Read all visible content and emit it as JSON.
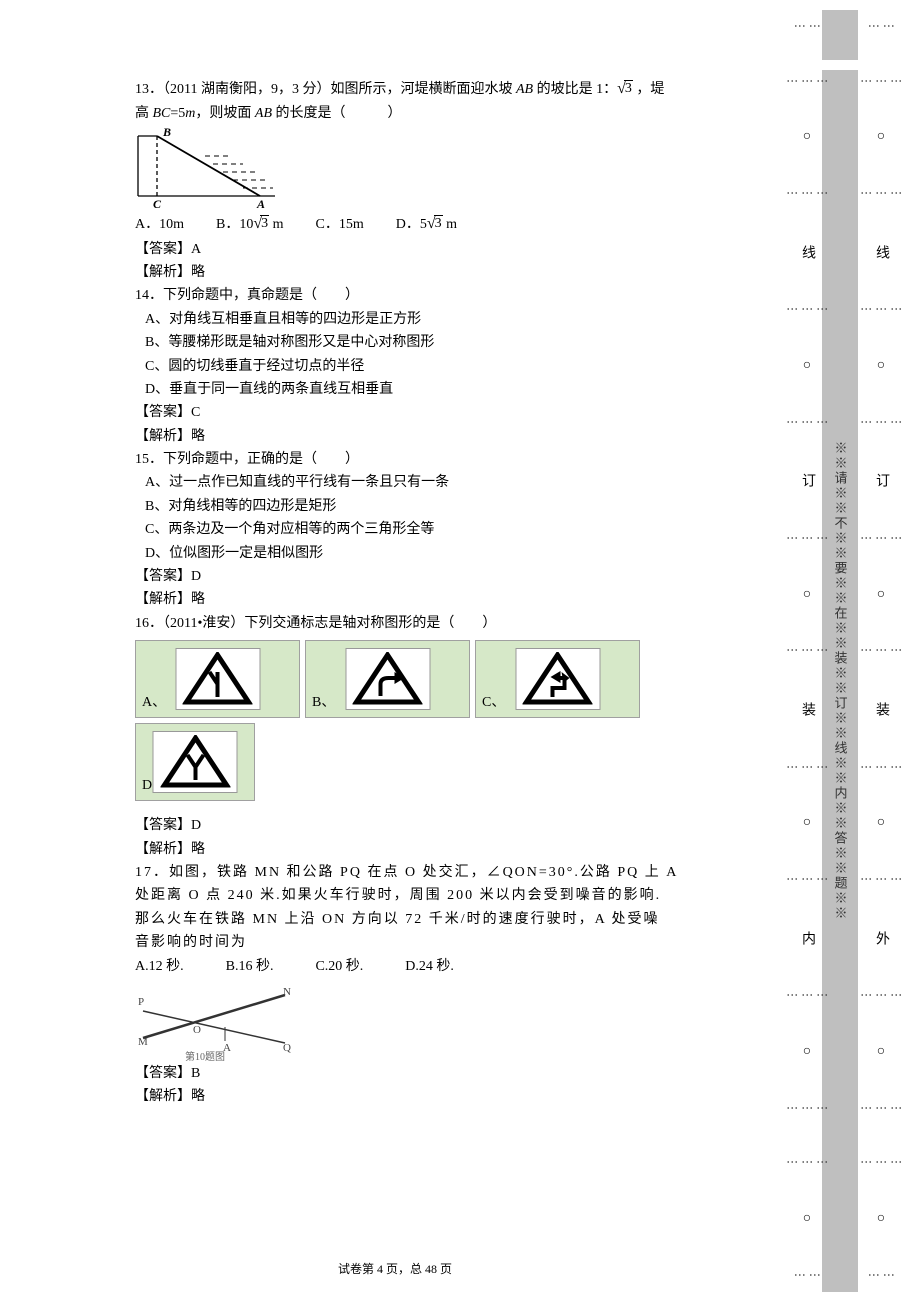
{
  "page": {
    "footer": "试卷第 4 页，总 48 页",
    "binding_left_chars": [
      "线",
      "订",
      "装",
      "内"
    ],
    "binding_right_chars": [
      "线",
      "订",
      "装",
      "外"
    ],
    "binding_middle_text": "※※请※※不※※要※※在※※装※※订※※线※※内※※答※※题※※",
    "dot": "⋮",
    "circle": "○"
  },
  "q13": {
    "text_pre": "13．（2011 湖南衡阳，9，3 分）如图所示，河堤横断面迎水坡 ",
    "text_ab": "AB",
    "text_mid": " 的坡比是 1：",
    "sqrt_3": "3",
    "text_post": " ，堤",
    "line2_pre": "高 ",
    "line2_bc": "BC",
    "line2_eq": "=5",
    "line2_m": "m",
    "line2_mid": "，则坡面 ",
    "line2_ab": "AB",
    "line2_post": " 的长度是（　　　）",
    "opt_a": "A．10m",
    "opt_b_pre": "B．10",
    "opt_b_post": " m",
    "opt_c": "C．15m",
    "opt_d_pre": "D．5",
    "opt_d_post": " m",
    "answer_label": "【答案】",
    "answer": "A",
    "explain_label": "【解析】",
    "explain": "略",
    "diagram_labels": {
      "B": "B",
      "C": "C",
      "A": "A"
    }
  },
  "q14": {
    "stem": "14．下列命题中，真命题是（　　）",
    "a": "A、对角线互相垂直且相等的四边形是正方形",
    "b": "B、等腰梯形既是轴对称图形又是中心对称图形",
    "c": "C、圆的切线垂直于经过切点的半径",
    "d": "D、垂直于同一直线的两条直线互相垂直",
    "answer_label": "【答案】",
    "answer": "C",
    "explain_label": "【解析】",
    "explain": "略"
  },
  "q15": {
    "stem": "15．下列命题中，正确的是（　　）",
    "a": "A、过一点作已知直线的平行线有一条且只有一条",
    "b": "B、对角线相等的四边形是矩形",
    "c": "C、两条边及一个角对应相等的两个三角形全等",
    "d": "D、位似图形一定是相似图形",
    "answer_label": "【答案】",
    "answer": "D",
    "explain_label": "【解析】",
    "explain": "略"
  },
  "q16": {
    "stem": "16．（2011•淮安）下列交通标志是轴对称图形的是（　　）",
    "labels": {
      "a": "A、",
      "b": "B、",
      "c": "C、",
      "d": "D、"
    },
    "answer_label": "【答案】",
    "answer": "D",
    "explain_label": "【解析】",
    "explain": "略"
  },
  "q17": {
    "l1": "17．如图，铁路 MN 和公路 PQ 在点 O 处交汇，∠QON=30°.公路 PQ 上 A",
    "l2": "处距离 O 点 240 米.如果火车行驶时，周围 200 米以内会受到噪音的影响.",
    "l3": "那么火车在铁路 MN 上沿 ON 方向以 72 千米/时的速度行驶时，A 处受噪",
    "l4": "音影响的时间为",
    "opts": "A.12 秒.　　　B.16 秒.　　　C.20 秒.　　　D.24 秒.",
    "caption": "第10题图",
    "answer_label": "【答案】",
    "answer": "B",
    "explain_label": "【解析】",
    "explain": "略",
    "diagram_labels": {
      "P": "P",
      "M": "M",
      "O": "O",
      "A": "A",
      "N": "N",
      "Q": "Q"
    }
  }
}
